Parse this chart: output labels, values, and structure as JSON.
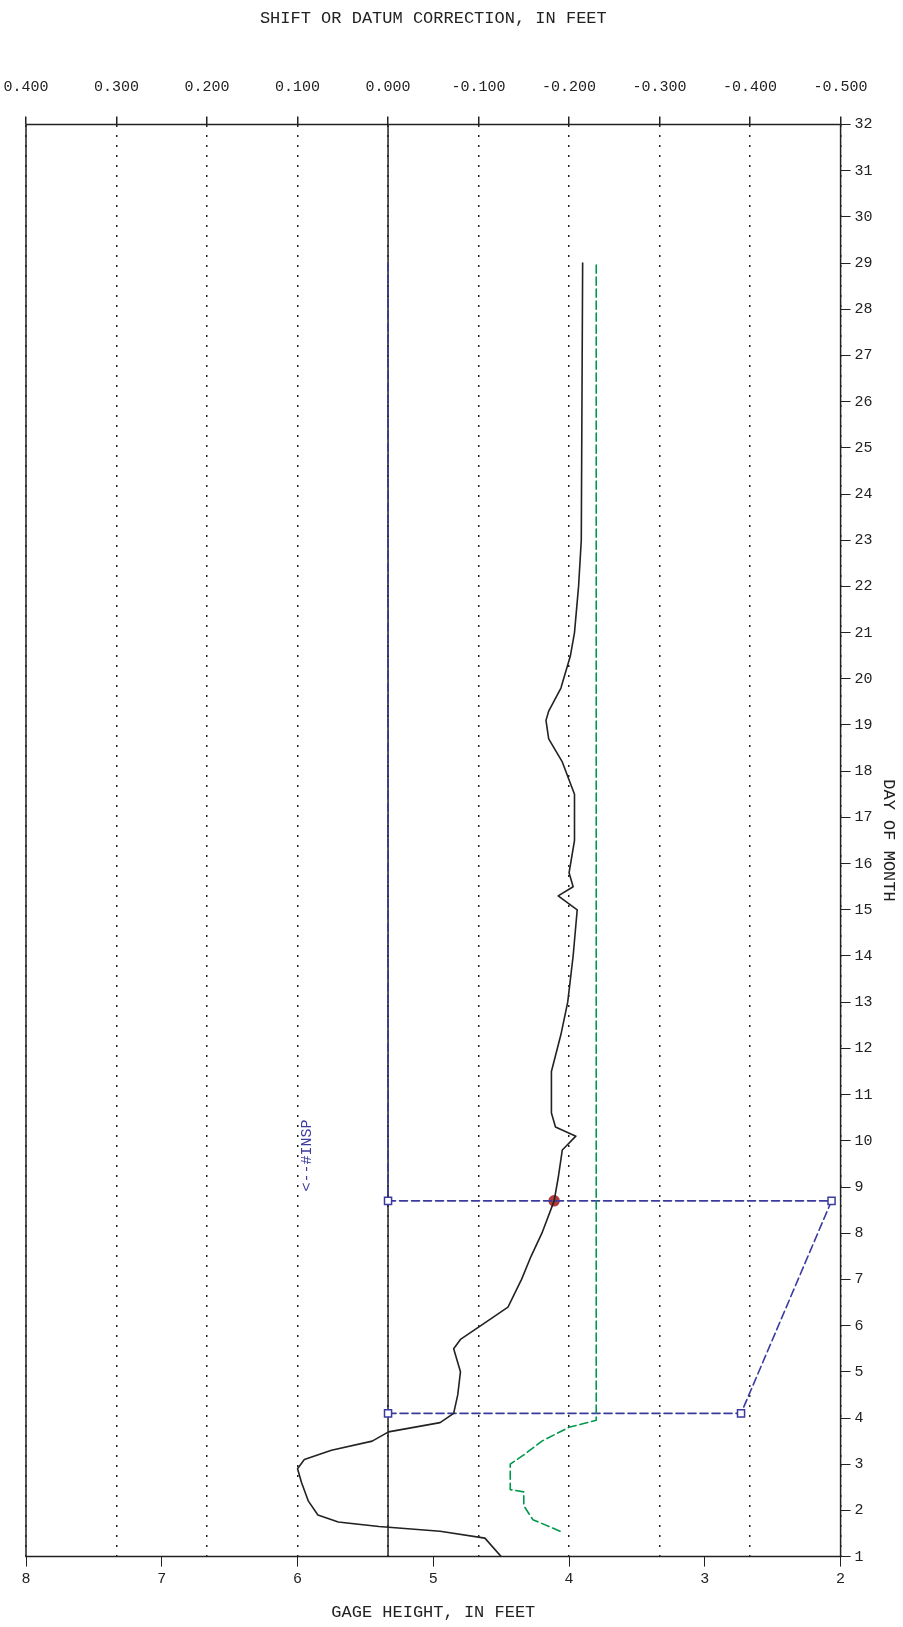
{
  "chart_data": {
    "type": "line",
    "xlabel": "GAGE HEIGHT, IN FEET",
    "x2label": "SHIFT OR DATUM CORRECTION, IN FEET",
    "ylabel": "DAY OF MONTH",
    "xlim": [
      8,
      2
    ],
    "xticks": [
      2,
      3,
      4,
      5,
      6,
      7,
      8
    ],
    "x2lim": [
      0.4,
      -0.5
    ],
    "x2ticks": [
      {
        "value": -0.5,
        "label": "-0.500"
      },
      {
        "value": -0.4,
        "label": "-0.400"
      },
      {
        "value": -0.3,
        "label": "-0.300"
      },
      {
        "value": -0.2,
        "label": "-0.200"
      },
      {
        "value": -0.1,
        "label": "-0.100"
      },
      {
        "value": 0,
        "label": "0.000"
      },
      {
        "value": 0.1,
        "label": "0.100"
      },
      {
        "value": 0.2,
        "label": "0.200"
      },
      {
        "value": 0.3,
        "label": "0.300"
      },
      {
        "value": 0.4,
        "label": "0.400"
      }
    ],
    "ylim": [
      1,
      32
    ],
    "yticks": [
      1,
      2,
      3,
      4,
      5,
      6,
      7,
      8,
      9,
      10,
      11,
      12,
      13,
      14,
      15,
      16,
      17,
      18,
      19,
      20,
      21,
      22,
      23,
      24,
      25,
      26,
      27,
      28,
      29,
      30,
      31,
      32
    ],
    "grid": "x2",
    "legend": false,
    "ref_lines": [
      {
        "axis": "x2",
        "value": 0,
        "color": "#222222",
        "line_style": "solid"
      }
    ],
    "annotations": [
      "<--#INSP"
    ],
    "series": [
      {
        "color": "#222222",
        "marker": "none",
        "line_style": "solid",
        "values": [
          1.0,
          1.4,
          1.55,
          1.65,
          1.75,
          1.9,
          2.2,
          2.6,
          2.9,
          3.1,
          3.3,
          3.5,
          3.7,
          3.9,
          4.1,
          4.5,
          5.0,
          5.5,
          5.7,
          6.0,
          6.4,
          7.0,
          7.5,
          8.0,
          8.7,
          9.2,
          9.8,
          10.1,
          10.3,
          10.6,
          11.5,
          12.3,
          13.0,
          14.0,
          15.0,
          15.3,
          15.5,
          15.8,
          16.5,
          17.5,
          18.2,
          18.7,
          19.1,
          19.3,
          19.8,
          20.5,
          21.0,
          22.0,
          23.0,
          29.0
        ],
        "x": [
          4.5,
          4.62,
          4.95,
          5.4,
          5.7,
          5.85,
          5.92,
          5.97,
          6.0,
          5.95,
          5.75,
          5.45,
          5.33,
          4.95,
          4.85,
          4.82,
          4.8,
          4.85,
          4.8,
          4.65,
          4.45,
          4.35,
          4.28,
          4.2,
          4.11,
          4.08,
          4.05,
          3.95,
          4.1,
          4.13,
          4.13,
          4.06,
          4.01,
          3.97,
          3.94,
          4.08,
          3.97,
          4.0,
          3.96,
          3.96,
          4.05,
          4.15,
          4.17,
          4.15,
          4.06,
          3.99,
          3.96,
          3.93,
          3.91,
          3.9
        ]
      },
      {
        "axis": "x2",
        "color": "#00994c",
        "marker": "none",
        "line_style": "dashed",
        "values": [
          1.55,
          1.8,
          2.1,
          2.4,
          2.45,
          3.0,
          3.2,
          3.5,
          3.8,
          3.95,
          29.0
        ],
        "x": [
          -0.19,
          -0.16,
          -0.15,
          -0.15,
          -0.135,
          -0.135,
          -0.15,
          -0.17,
          -0.2,
          -0.23,
          -0.23
        ]
      },
      {
        "type": "line",
        "axis": "x2",
        "color": "#3a3aa0",
        "marker": "square",
        "line_style": "dashed",
        "values": [
          4.1,
          4.1,
          8.7,
          8.7
        ],
        "x": [
          0,
          -0.39,
          -0.49,
          0
        ]
      },
      {
        "type": "line",
        "axis": "x2",
        "color": "#3a3aa0",
        "marker": "none",
        "line_style": "dashed",
        "values": [
          29.0,
          8.7
        ],
        "x": [
          0,
          0
        ]
      },
      {
        "type": "scatter",
        "color": "#b03a3a",
        "marker": "circle",
        "values": [
          8.7
        ],
        "x": [
          4.11
        ]
      }
    ]
  }
}
